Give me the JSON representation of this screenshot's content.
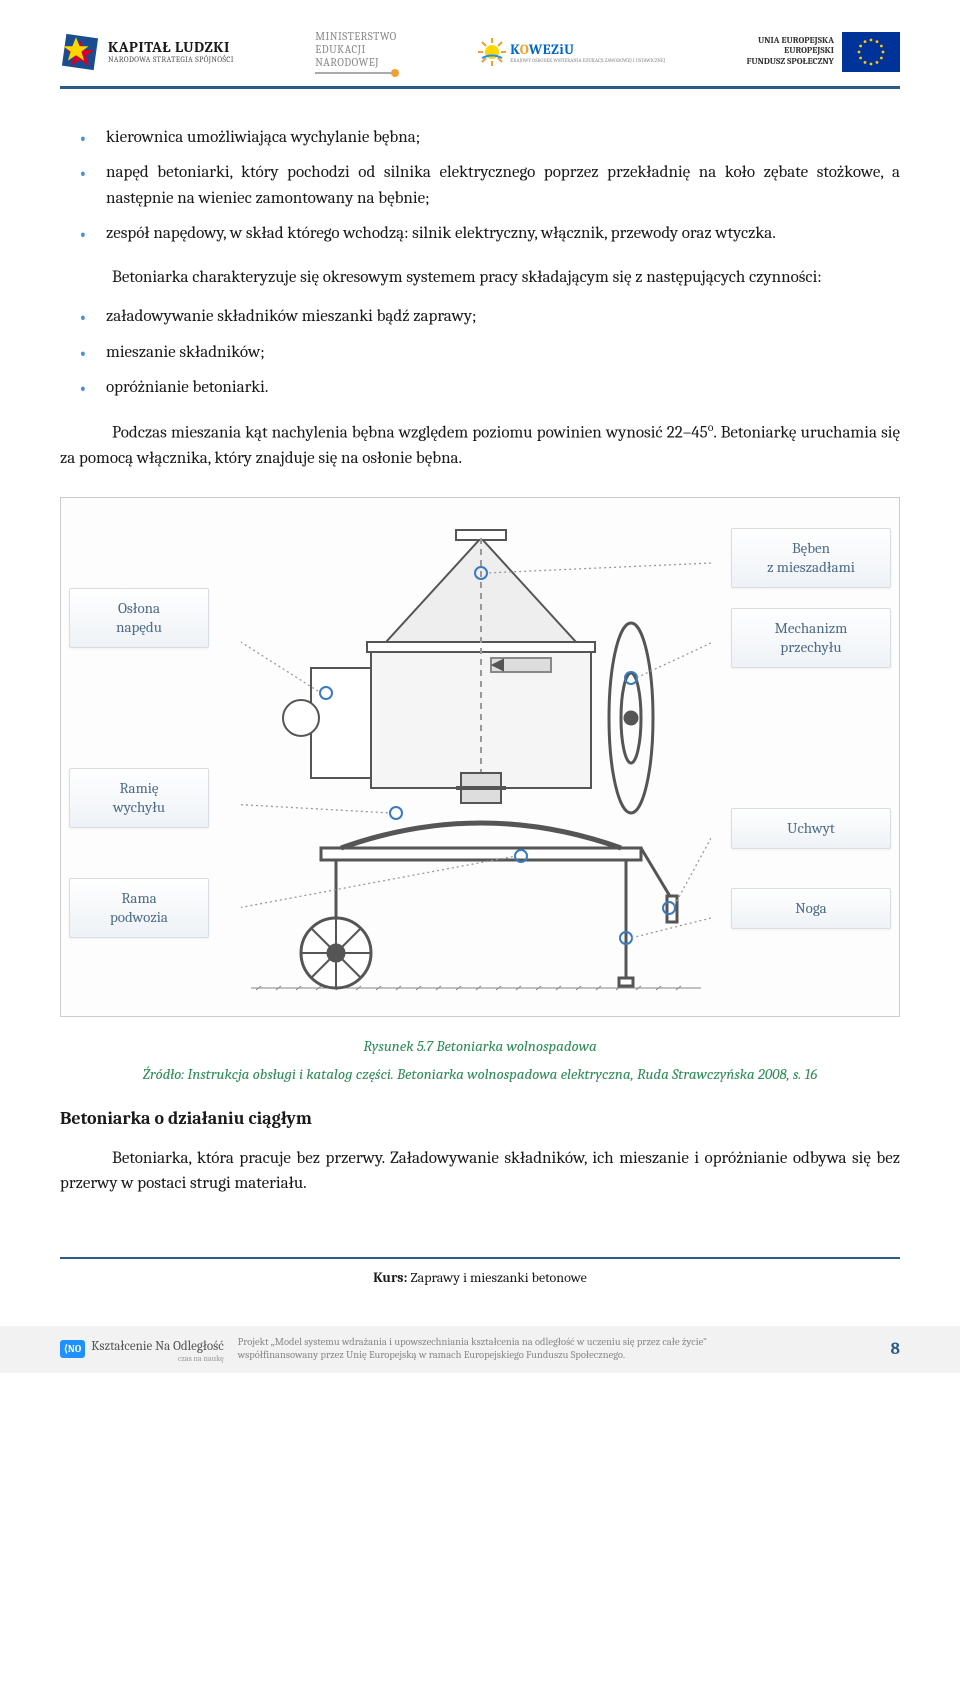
{
  "header": {
    "kapital": {
      "line1": "KAPITAŁ LUDZKI",
      "line2": "NARODOWA STRATEGIA SPÓJNOŚCI"
    },
    "ministerstwo": {
      "l1": "MINISTERSTWO",
      "l2": "EDUKACJI",
      "l3": "NARODOWEJ"
    },
    "koweziu": {
      "text_html": "K<span class='o'>O</span>WEZiU",
      "sub": "KRAJOWY OŚRODEK WSPIERANIA EDUKACJI ZAWODOWEJ I USTAWICZNEJ"
    },
    "eu": {
      "l1": "UNIA EUROPEJSKA",
      "l2": "EUROPEJSKI",
      "l3": "FUNDUSZ SPOŁECZNY"
    }
  },
  "list1": [
    "kierownica umożliwiająca wychylanie bębna;",
    "napęd betoniarki, który pochodzi od silnika elektrycznego poprzez przekładnię na koło zębate stożkowe, a następnie na wieniec zamontowany na bębnie;",
    "zespół napędowy, w skład którego wchodzą: silnik elektryczny, włącznik, przewody oraz wtyczka."
  ],
  "para1": "Betoniarka charakteryzuje się okresowym systemem pracy składającym się z następujących czynności:",
  "list2": [
    "załadowywanie składników mieszanki bądź zaprawy;",
    "mieszanie składników;",
    "opróżnianie betoniarki."
  ],
  "para2_html": "Podczas mieszania kąt nachylenia bębna względem poziomu powinien wynosić 22–45<span class='sup'>o</span>. Betoniarkę uruchamia się za pomocą włącznika, który znajduje się na osłonie bębna.",
  "figure": {
    "labels": {
      "oslona": "Osłona\nnapędu",
      "ramie": "Ramię\nwychyłu",
      "rama": "Rama\npodwozia",
      "beben": "Bęben\nz mieszadłami",
      "mechanizm": "Mechanizm\nprzechyłu",
      "uchwyt": "Uchwyt",
      "noga": "Noga"
    },
    "caption": "Rysunek 5.7 Betoniarka wolnospadowa",
    "source": "Źródło: Instrukcja obsługi i katalog części. Betoniarka wolnospadowa elektryczna, Ruda Strawczyńska 2008, s. 16"
  },
  "section2": {
    "head": "Betoniarka o działaniu ciągłym",
    "para": "Betoniarka, która pracuje bez przerwy. Załadowywanie składników, ich mieszanie i opróżnianie odbywa się bez przerwy w postaci strugi materiału."
  },
  "footer": {
    "course_label": "Kurs:",
    "course_name": " Zaprawy i mieszanki betonowe",
    "kno": {
      "badge": "⟨NO",
      "text": "Kształcenie Na Odległość",
      "sub": "czas na naukę"
    },
    "project": "Projekt „Model systemu wdrażania i upowszechniania kształcenia na odległość w uczeniu się przez całe życie\"\nwspółfinansowany przez Unię Europejską w ramach Europejskiego Funduszu Społecznego.",
    "page": "8"
  },
  "colors": {
    "accent": "#2a5c8a",
    "bullet": "#4a90d9",
    "caption": "#2e8b57",
    "label_text": "#4f6b85"
  }
}
